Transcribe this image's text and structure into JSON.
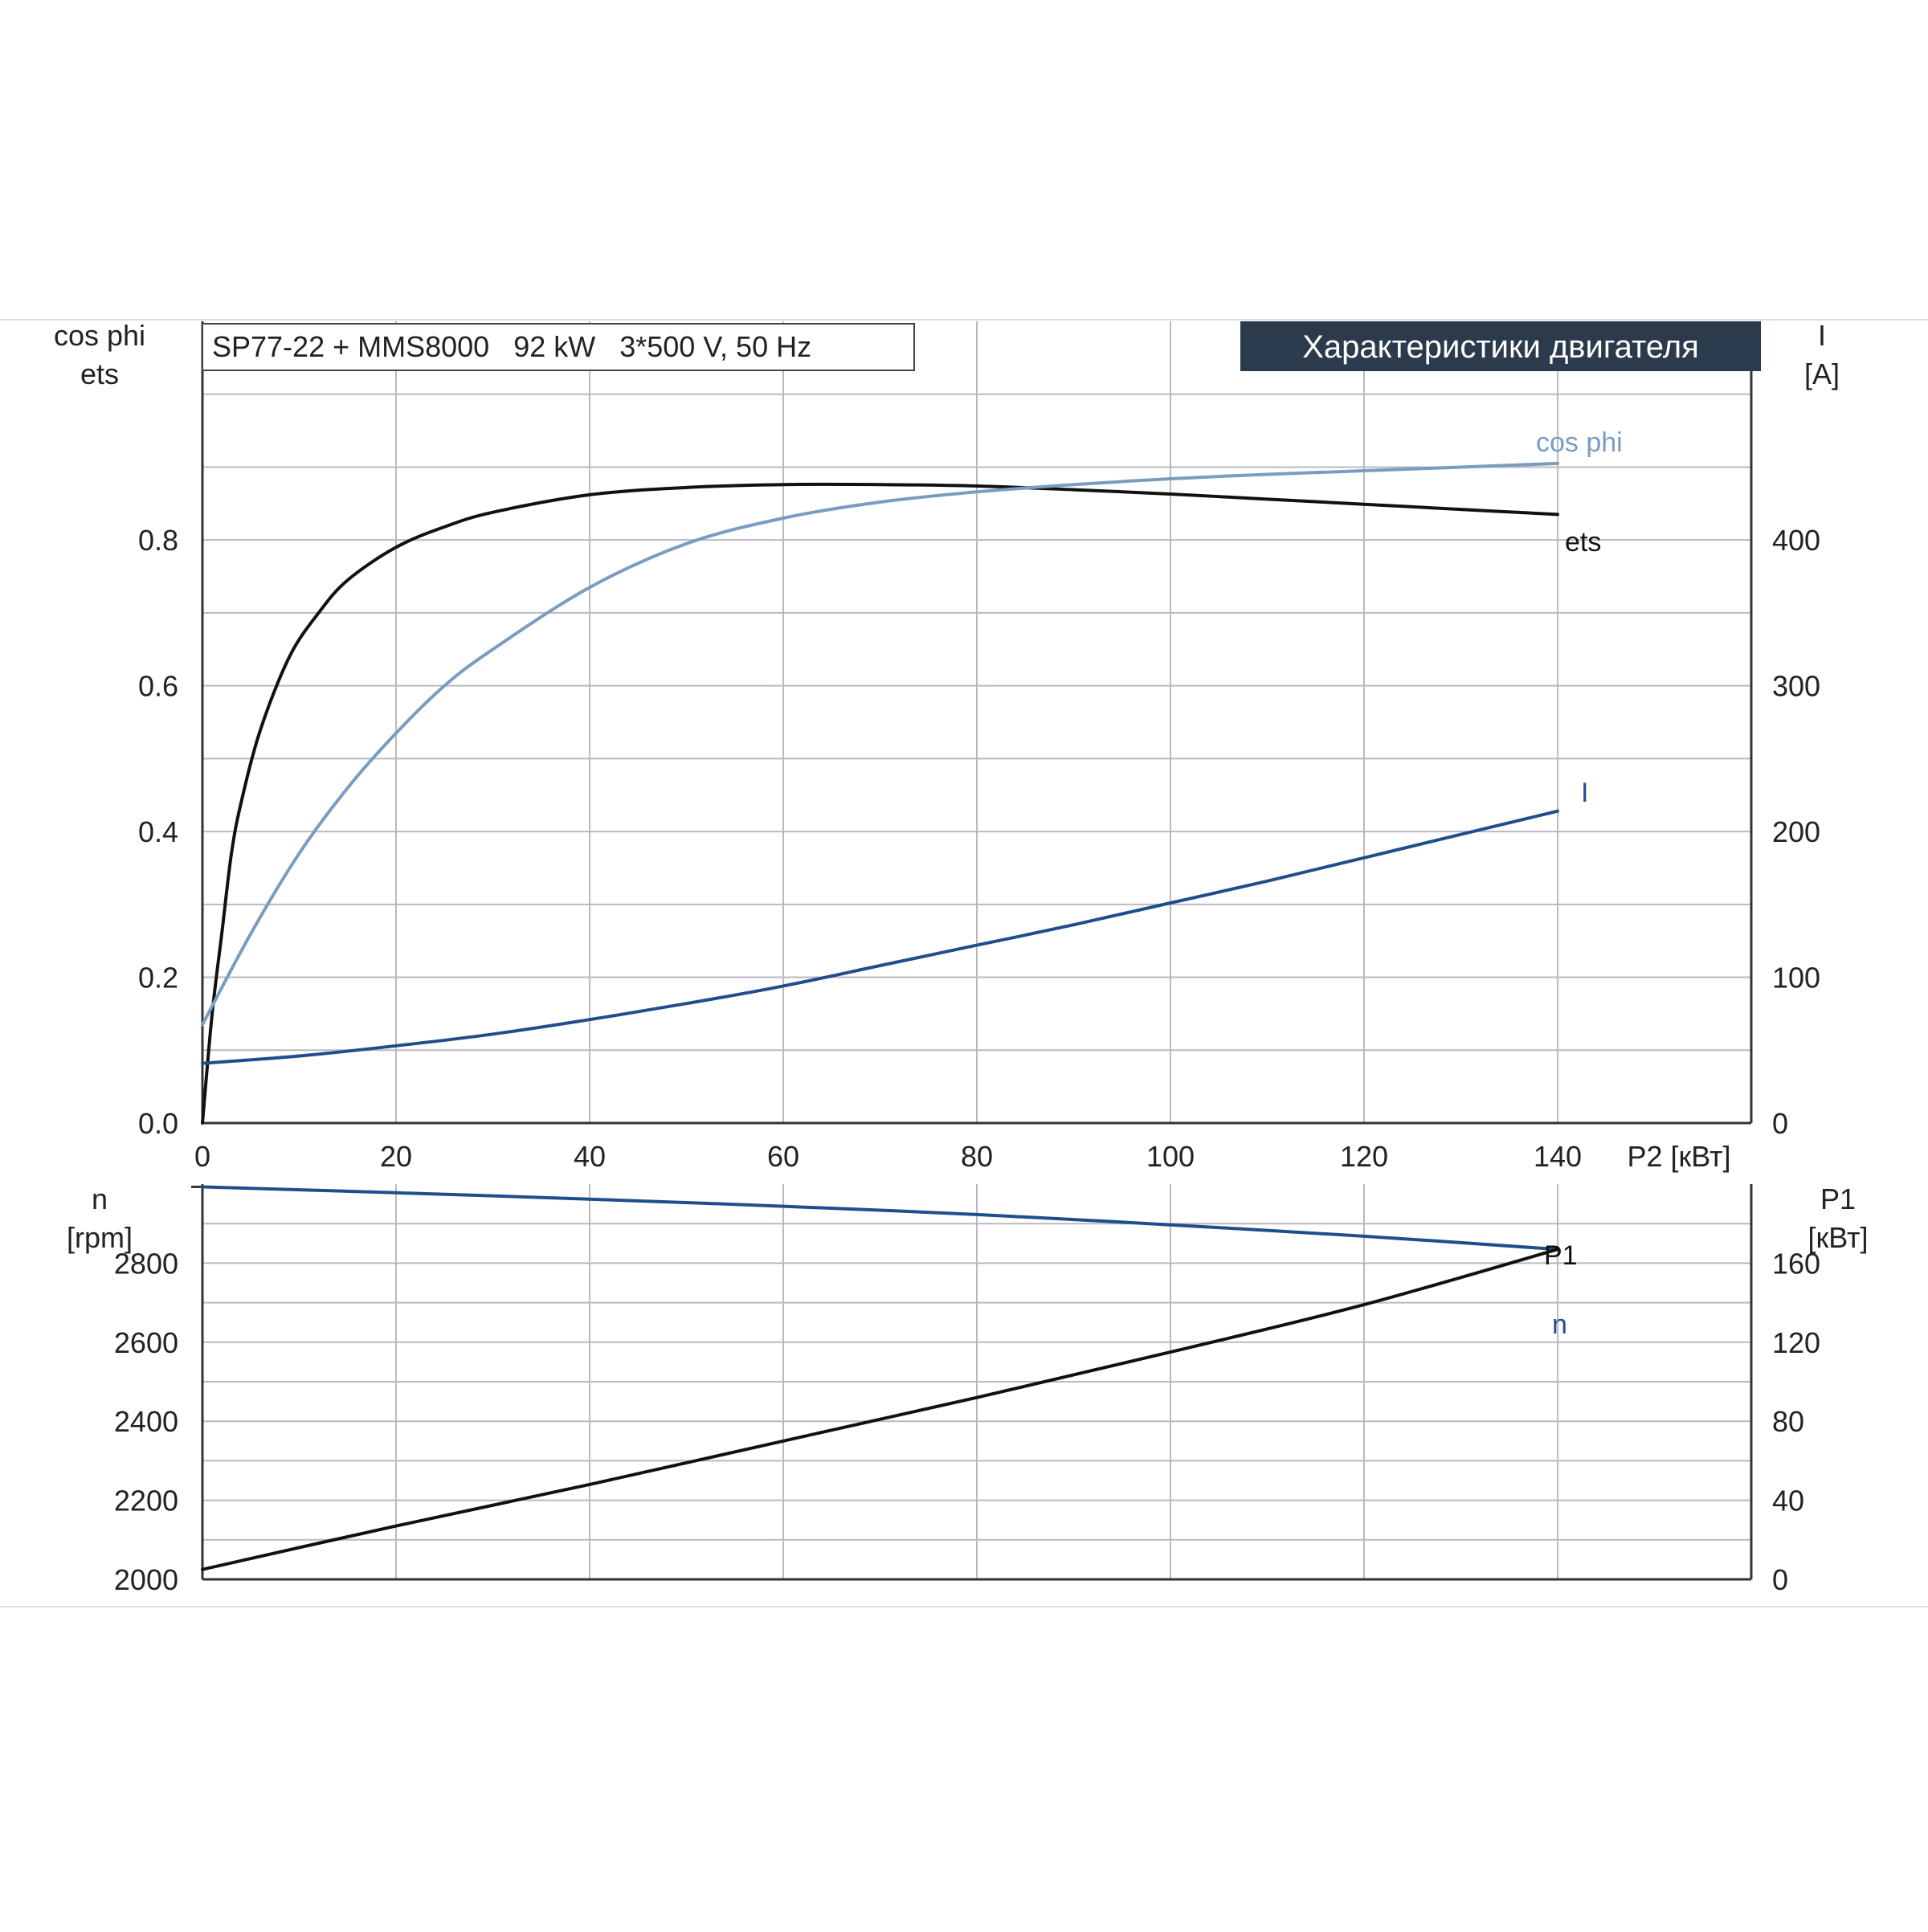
{
  "colors": {
    "ets": "#111111",
    "cos_phi": "#7a9cc0",
    "current": "#1f4e8c",
    "speed": "#1f4e8c",
    "p1": "#111111",
    "grid": "#b9b9c4",
    "axis": "#333333",
    "tag_bg": "#2b3b4d",
    "tag_fg": "#ffffff"
  },
  "header": {
    "model_label": "SP77-22 + MMS8000   92 kW   3*500 V, 50 Hz",
    "title_tag": "Характеристики двигателя"
  },
  "chart_data": [
    {
      "type": "line",
      "x_axis": {
        "label": "P2 [кВт]",
        "range": [
          0,
          160
        ],
        "ticks": [
          0,
          20,
          40,
          60,
          80,
          100,
          120,
          140
        ]
      },
      "y_left": {
        "label_line1": "cos phi",
        "label_line2": "ets",
        "range": [
          0,
          1.1
        ],
        "ticks": [
          0.0,
          0.2,
          0.4,
          0.6,
          0.8
        ],
        "tick_labels": [
          "0.0",
          "0.2",
          "0.4",
          "0.6",
          "0.8"
        ]
      },
      "y_right": {
        "label_line1": "I",
        "label_line2": "[A]",
        "range": [
          0,
          550
        ],
        "ticks": [
          0,
          100,
          200,
          300,
          400
        ],
        "tick_labels": [
          "0",
          "100",
          "200",
          "300",
          "400"
        ]
      },
      "series": [
        {
          "name": "ets",
          "axis": "left",
          "x": [
            0,
            1,
            2,
            3,
            4,
            6,
            9,
            12,
            15,
            20,
            25,
            30,
            40,
            50,
            60,
            70,
            80,
            90,
            100,
            110,
            120,
            130,
            140
          ],
          "y": [
            0.0,
            0.15,
            0.26,
            0.37,
            0.44,
            0.54,
            0.64,
            0.7,
            0.745,
            0.79,
            0.818,
            0.838,
            0.862,
            0.872,
            0.876,
            0.876,
            0.874,
            0.869,
            0.863,
            0.856,
            0.849,
            0.842,
            0.835
          ]
        },
        {
          "name": "cos phi",
          "axis": "left",
          "x": [
            0,
            5,
            10,
            15,
            20,
            25,
            30,
            40,
            50,
            60,
            70,
            80,
            90,
            100,
            110,
            120,
            130,
            140
          ],
          "y": [
            0.135,
            0.26,
            0.37,
            0.46,
            0.535,
            0.6,
            0.65,
            0.735,
            0.795,
            0.83,
            0.852,
            0.866,
            0.876,
            0.884,
            0.89,
            0.895,
            0.9,
            0.905
          ]
        },
        {
          "name": "I",
          "axis": "right",
          "x": [
            0,
            10,
            20,
            30,
            40,
            50,
            60,
            70,
            80,
            90,
            100,
            110,
            120,
            130,
            140
          ],
          "y": [
            41,
            46,
            53,
            61,
            71,
            82,
            94,
            108,
            122,
            136,
            151,
            166,
            182,
            198,
            214
          ]
        }
      ]
    },
    {
      "type": "line",
      "x_axis": {
        "range": [
          0,
          160
        ],
        "ticks": [
          0,
          20,
          40,
          60,
          80,
          100,
          120,
          140
        ]
      },
      "y_left": {
        "label_line1": "n",
        "label_line2": "[rpm]",
        "range": [
          2000,
          3000
        ],
        "ticks": [
          2000,
          2200,
          2400,
          2600,
          2800
        ],
        "tick_labels": [
          "2000",
          "2200",
          "2400",
          "2600",
          "2800"
        ]
      },
      "y_right": {
        "label_line1": "P1",
        "label_line2": "[кВт]",
        "range": [
          0,
          200
        ],
        "ticks": [
          0,
          40,
          80,
          120,
          160
        ],
        "tick_labels": [
          "0",
          "40",
          "80",
          "120",
          "160"
        ]
      },
      "series": [
        {
          "name": "n",
          "axis": "left",
          "x": [
            0,
            20,
            40,
            60,
            80,
            100,
            120,
            140
          ],
          "y": [
            2993,
            2978,
            2962,
            2944,
            2923,
            2897,
            2868,
            2835
          ]
        },
        {
          "name": "P1",
          "axis": "right",
          "x": [
            0,
            20,
            40,
            60,
            80,
            100,
            120,
            140
          ],
          "y": [
            5,
            27,
            48,
            70,
            92,
            115,
            139,
            167
          ]
        }
      ]
    }
  ]
}
